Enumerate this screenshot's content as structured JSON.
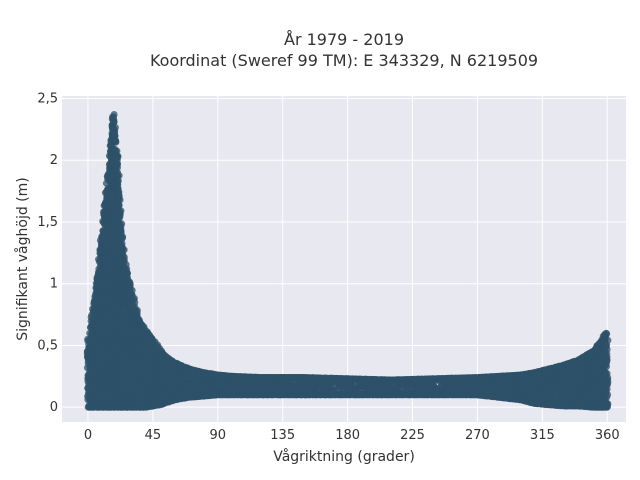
{
  "chart_data": {
    "type": "scatter",
    "title_lines": [
      "År 1979 - 2019",
      "Koordinat (Sweref 99 TM): E 343329, N 6219509"
    ],
    "xlabel": "Vågriktning (grader)",
    "ylabel": "Signifikant våghöjd (m)",
    "xlim": [
      -18,
      373
    ],
    "ylim": [
      -0.12,
      2.52
    ],
    "x_ticks": [
      0,
      45,
      90,
      135,
      180,
      225,
      270,
      315,
      360
    ],
    "x_tick_labels": [
      "0",
      "45",
      "90",
      "135",
      "180",
      "225",
      "270",
      "315",
      "360"
    ],
    "y_ticks": [
      0,
      0.5,
      1,
      1.5,
      2,
      2.5
    ],
    "y_tick_labels": [
      "0",
      "0,5",
      "1",
      "1,5",
      "2",
      "2,5"
    ],
    "grid": true,
    "background": "#e8e8f0",
    "marker_color": "#2e5268",
    "series": [
      {
        "envelope": {
          "direction": [
            0,
            5,
            10,
            15,
            17,
            18,
            20,
            22,
            25,
            30,
            35,
            40,
            45,
            50,
            55,
            60,
            70,
            80,
            90,
            100,
            120,
            150,
            180,
            210,
            240,
            270,
            300,
            310,
            320,
            330,
            340,
            350,
            355,
            358,
            360
          ],
          "max_height": [
            0.55,
            0.9,
            1.45,
            2.0,
            2.3,
            2.4,
            2.1,
            1.65,
            1.2,
            0.95,
            0.72,
            0.62,
            0.55,
            0.46,
            0.4,
            0.36,
            0.31,
            0.28,
            0.26,
            0.25,
            0.24,
            0.24,
            0.23,
            0.22,
            0.23,
            0.24,
            0.26,
            0.28,
            0.31,
            0.34,
            0.38,
            0.45,
            0.52,
            0.58,
            0.6
          ],
          "min_height": [
            0.0,
            0.0,
            0.0,
            0.0,
            0.0,
            0.0,
            0.0,
            0.0,
            0.0,
            0.0,
            0.0,
            0.0,
            0.01,
            0.02,
            0.04,
            0.06,
            0.08,
            0.09,
            0.1,
            0.1,
            0.1,
            0.1,
            0.1,
            0.1,
            0.1,
            0.1,
            0.06,
            0.03,
            0.02,
            0.01,
            0.01,
            0.0,
            0.0,
            0.0,
            0.0
          ]
        }
      }
    ]
  }
}
